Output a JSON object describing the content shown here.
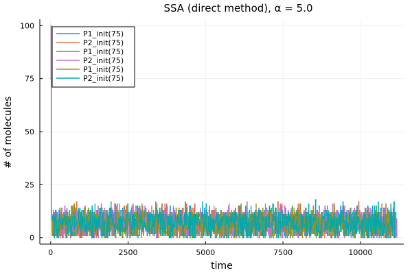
{
  "chart_data": {
    "type": "line",
    "title": "SSA (direct method), α = 5.0",
    "xlabel": "time",
    "ylabel": "# of molecules",
    "xlim": [
      -350,
      11400
    ],
    "ylim": [
      -3,
      103
    ],
    "x_ticks": [
      0,
      2500,
      5000,
      7500,
      10000
    ],
    "x_tick_labels": [
      "0",
      "2500",
      "5000",
      "7500",
      "10000"
    ],
    "y_ticks": [
      0,
      25,
      50,
      75,
      100
    ],
    "y_tick_labels": [
      "0",
      "25",
      "50",
      "75",
      "100"
    ],
    "grid": true,
    "legend_position": "top-left",
    "series": [
      {
        "name": "P1_init(75)",
        "color": "#009AFA",
        "t_end": 11150,
        "initial": 75,
        "peak": 100,
        "band_min": 0,
        "band_max": 13,
        "spike_max": 15,
        "seed": 11
      },
      {
        "name": "P2_init(75)",
        "color": "#E36F47",
        "t_end": 11150,
        "initial": 75,
        "peak": 100,
        "band_min": 0,
        "band_max": 12,
        "spike_max": 17,
        "seed": 23
      },
      {
        "name": "P1_init(75)",
        "color": "#3EA44E",
        "t_end": 11100,
        "initial": 75,
        "peak": 75,
        "band_min": 0,
        "band_max": 12,
        "spike_max": 15,
        "seed": 37
      },
      {
        "name": "P2_init(75)",
        "color": "#C371D2",
        "t_end": 11180,
        "initial": 75,
        "peak": 100,
        "band_min": 0,
        "band_max": 13,
        "spike_max": 16,
        "seed": 51
      },
      {
        "name": "P1_init(75)",
        "color": "#AC8D18",
        "t_end": 11120,
        "initial": 75,
        "peak": 75,
        "band_min": 0,
        "band_max": 12,
        "spike_max": 16,
        "seed": 67
      },
      {
        "name": "P2_init(75)",
        "color": "#00A9AD",
        "t_end": 11100,
        "initial": 75,
        "peak": 75,
        "band_min": 0,
        "band_max": 12,
        "spike_max": 18,
        "seed": 83
      }
    ]
  }
}
